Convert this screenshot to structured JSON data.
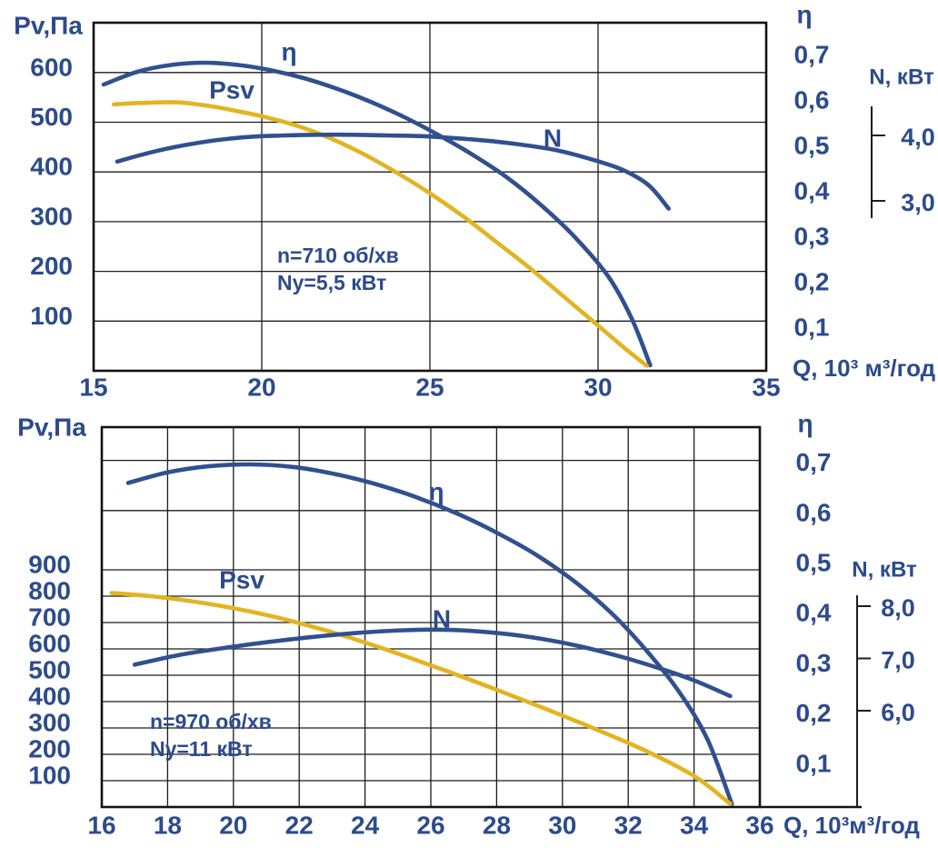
{
  "colors": {
    "curve_blue": "#30508F",
    "curve_yellow": "#E3B422",
    "text_blue": "#2C4B8C",
    "grid": "#1C1C1C",
    "border": "#131313"
  },
  "chart_data": [
    {
      "id": "top-chart",
      "type": "line",
      "pv_title": "Pv,Па",
      "x_axis": {
        "label": "Q, 10³ м³/год",
        "min": 15,
        "max": 35,
        "ticks": [
          {
            "v": 15,
            "label": "15"
          },
          {
            "v": 20,
            "label": "20"
          },
          {
            "v": 25,
            "label": "25"
          },
          {
            "v": 30,
            "label": "30"
          },
          {
            "v": 35,
            "label": "35"
          }
        ],
        "grid": [
          20,
          25,
          30
        ]
      },
      "pv_axis": {
        "ticks": [
          {
            "v": 600,
            "label": "600"
          },
          {
            "v": 500,
            "label": "500"
          },
          {
            "v": 400,
            "label": "400"
          },
          {
            "v": 300,
            "label": "300"
          },
          {
            "v": 200,
            "label": "200"
          },
          {
            "v": 100,
            "label": "100"
          }
        ],
        "grid": [
          100,
          200,
          300,
          400,
          500,
          600
        ]
      },
      "eta_axis": {
        "header": "η",
        "ticks": [
          {
            "v": 0.7,
            "label": "0,7"
          },
          {
            "v": 0.6,
            "label": "0,6"
          },
          {
            "v": 0.5,
            "label": "0,5"
          },
          {
            "v": 0.4,
            "label": "0,4"
          },
          {
            "v": 0.3,
            "label": "0,3"
          },
          {
            "v": 0.2,
            "label": "0,2"
          },
          {
            "v": 0.1,
            "label": "0,1"
          }
        ],
        "grid": []
      },
      "n_axis": {
        "header": "N, кВт",
        "ticks": [
          {
            "v": 4.0,
            "label": "4,0"
          },
          {
            "v": 3.0,
            "label": "3,0"
          }
        ]
      },
      "annotation": [
        "n=710 об/хв",
        "Ny=5,5 кВт"
      ],
      "series": [
        {
          "name": "eta-curve",
          "label": "η",
          "yscale": "eta",
          "color": "blue",
          "points": [
            [
              15.3,
              0.63
            ],
            [
              16.3,
              0.658
            ],
            [
              17.3,
              0.673
            ],
            [
              18.3,
              0.678
            ],
            [
              19.3,
              0.673
            ],
            [
              20.3,
              0.661
            ],
            [
              21.3,
              0.643
            ],
            [
              22.3,
              0.619
            ],
            [
              23.3,
              0.59
            ],
            [
              24.3,
              0.556
            ],
            [
              25.3,
              0.517
            ],
            [
              26.3,
              0.474
            ],
            [
              27.3,
              0.425
            ],
            [
              28.3,
              0.365
            ],
            [
              29.3,
              0.295
            ],
            [
              30.3,
              0.208
            ],
            [
              31.0,
              0.115
            ],
            [
              31.55,
              0.012
            ]
          ]
        },
        {
          "name": "psv-curve",
          "label": "Psv",
          "yscale": "pv",
          "color": "yellow",
          "points": [
            [
              15.6,
              536
            ],
            [
              16.5,
              539
            ],
            [
              17.5,
              540
            ],
            [
              18.5,
              532
            ],
            [
              19.3,
              522
            ],
            [
              20.0,
              512
            ],
            [
              21.0,
              494
            ],
            [
              22.0,
              469
            ],
            [
              23.0,
              437
            ],
            [
              24.0,
              399
            ],
            [
              25.0,
              357
            ],
            [
              26.0,
              310
            ],
            [
              27.0,
              258
            ],
            [
              28.0,
              205
            ],
            [
              29.0,
              148
            ],
            [
              30.0,
              91
            ],
            [
              30.8,
              45
            ],
            [
              31.45,
              10
            ]
          ]
        },
        {
          "name": "n-curve",
          "label": "N",
          "yscale": "n",
          "color": "blue",
          "points": [
            [
              15.7,
              3.6
            ],
            [
              16.7,
              3.74
            ],
            [
              17.7,
              3.85
            ],
            [
              18.7,
              3.93
            ],
            [
              19.7,
              3.98
            ],
            [
              20.7,
              4.0
            ],
            [
              21.7,
              4.01
            ],
            [
              22.7,
              4.01
            ],
            [
              23.7,
              4.0
            ],
            [
              24.7,
              3.99
            ],
            [
              25.7,
              3.96
            ],
            [
              26.7,
              3.92
            ],
            [
              27.7,
              3.86
            ],
            [
              28.7,
              3.78
            ],
            [
              29.7,
              3.65
            ],
            [
              30.7,
              3.48
            ],
            [
              31.5,
              3.24
            ],
            [
              32.1,
              2.88
            ]
          ]
        }
      ]
    },
    {
      "id": "bottom-chart",
      "type": "line",
      "pv_title": "Pv,Па",
      "x_axis": {
        "label": "Q, 10³м³/год",
        "min": 16,
        "max": 36,
        "ticks": [
          {
            "v": 16,
            "label": "16"
          },
          {
            "v": 18,
            "label": "18"
          },
          {
            "v": 20,
            "label": "20"
          },
          {
            "v": 22,
            "label": "22"
          },
          {
            "v": 24,
            "label": "24"
          },
          {
            "v": 26,
            "label": "26"
          },
          {
            "v": 28,
            "label": "28"
          },
          {
            "v": 30,
            "label": "30"
          },
          {
            "v": 32,
            "label": "32"
          },
          {
            "v": 34,
            "label": "34"
          },
          {
            "v": 36,
            "label": "36"
          }
        ],
        "grid": [
          18,
          20,
          22,
          24,
          26,
          28,
          30,
          32,
          34
        ]
      },
      "pv_axis": {
        "ticks": [
          {
            "v": 900,
            "label": "900"
          },
          {
            "v": 800,
            "label": "800"
          },
          {
            "v": 700,
            "label": "700"
          },
          {
            "v": 600,
            "label": "600"
          },
          {
            "v": 500,
            "label": "500"
          },
          {
            "v": 400,
            "label": "400"
          },
          {
            "v": 300,
            "label": "300"
          },
          {
            "v": 200,
            "label": "200"
          },
          {
            "v": 100,
            "label": "100"
          }
        ],
        "grid": [
          100,
          200,
          300,
          400,
          500,
          600,
          700,
          800,
          900
        ]
      },
      "eta_axis": {
        "header": "η",
        "ticks": [
          {
            "v": 0.7,
            "label": "0,7"
          },
          {
            "v": 0.6,
            "label": "0,6"
          },
          {
            "v": 0.5,
            "label": "0,5"
          },
          {
            "v": 0.4,
            "label": "0,4"
          },
          {
            "v": 0.3,
            "label": "0,3"
          },
          {
            "v": 0.2,
            "label": "0,2"
          },
          {
            "v": 0.1,
            "label": "0,1"
          }
        ],
        "grid": [
          0.7,
          0.6
        ]
      },
      "n_axis": {
        "header": "N, кВт",
        "ticks": [
          {
            "v": 8.0,
            "label": "8,0"
          },
          {
            "v": 7.0,
            "label": "7,0"
          },
          {
            "v": 6.0,
            "label": "6,0"
          }
        ]
      },
      "annotation": [
        "n=970 об/хв",
        "Ny=11 кВт"
      ],
      "series": [
        {
          "name": "eta-curve",
          "label": "η",
          "yscale": "eta",
          "color": "blue",
          "points": [
            [
              16.8,
              0.655
            ],
            [
              18.0,
              0.676
            ],
            [
              19.2,
              0.688
            ],
            [
              20.5,
              0.692
            ],
            [
              21.8,
              0.687
            ],
            [
              23.0,
              0.674
            ],
            [
              24.2,
              0.655
            ],
            [
              25.5,
              0.628
            ],
            [
              26.8,
              0.594
            ],
            [
              28.0,
              0.556
            ],
            [
              29.2,
              0.512
            ],
            [
              30.4,
              0.457
            ],
            [
              31.5,
              0.395
            ],
            [
              32.5,
              0.325
            ],
            [
              33.5,
              0.243
            ],
            [
              34.4,
              0.145
            ],
            [
              35.15,
              0.015
            ]
          ]
        },
        {
          "name": "psv-curve",
          "label": "Psv",
          "yscale": "pv",
          "color": "yellow",
          "points": [
            [
              16.3,
              812
            ],
            [
              17.5,
              800
            ],
            [
              19.0,
              776
            ],
            [
              20.5,
              742
            ],
            [
              22.0,
              698
            ],
            [
              23.5,
              644
            ],
            [
              25.0,
              582
            ],
            [
              26.5,
              515
            ],
            [
              28.0,
              445
            ],
            [
              29.5,
              372
            ],
            [
              31.0,
              296
            ],
            [
              32.5,
              215
            ],
            [
              34.0,
              118
            ],
            [
              35.1,
              12
            ]
          ]
        },
        {
          "name": "n-curve",
          "label": "N",
          "yscale": "n",
          "color": "blue",
          "points": [
            [
              17.0,
              6.88
            ],
            [
              18.3,
              7.06
            ],
            [
              19.6,
              7.19
            ],
            [
              21.0,
              7.31
            ],
            [
              22.4,
              7.41
            ],
            [
              23.8,
              7.49
            ],
            [
              25.2,
              7.54
            ],
            [
              26.4,
              7.55
            ],
            [
              27.6,
              7.51
            ],
            [
              29.0,
              7.41
            ],
            [
              30.4,
              7.25
            ],
            [
              31.8,
              7.03
            ],
            [
              33.0,
              6.8
            ],
            [
              34.0,
              6.58
            ],
            [
              35.1,
              6.28
            ]
          ]
        }
      ]
    }
  ]
}
